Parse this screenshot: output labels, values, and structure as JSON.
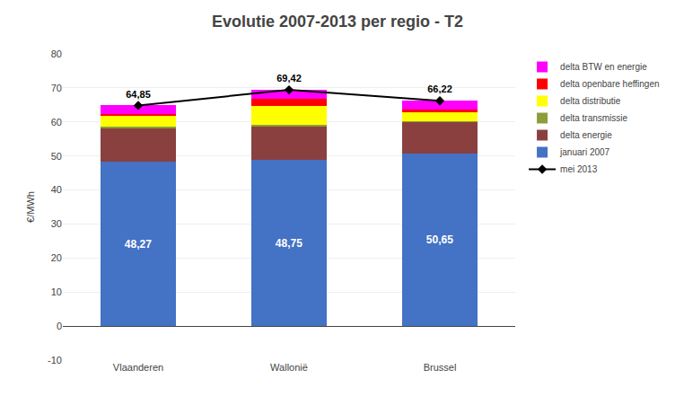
{
  "chart_data": {
    "type": "bar",
    "stacked": true,
    "title": "Evolutie 2007-2013 per regio - T2",
    "ylabel": "€/MWh",
    "categories": [
      "Vlaanderen",
      "Wallonië",
      "Brussel"
    ],
    "ylim": [
      -10,
      80
    ],
    "yticks": [
      -10,
      0,
      10,
      20,
      30,
      40,
      50,
      60,
      70,
      80
    ],
    "grid": true,
    "legend": "right",
    "series": [
      {
        "name": "januari 2007",
        "type": "bar",
        "color": "#4472C4",
        "values": [
          48.27,
          48.75,
          50.65
        ],
        "value_labels": [
          "48,27",
          "48,75",
          "50,65"
        ],
        "data_labels": true
      },
      {
        "name": "delta energie",
        "type": "bar",
        "color": "#8B4040",
        "values": [
          10.08,
          10.13,
          9.35
        ]
      },
      {
        "name": "delta transmissie",
        "type": "bar",
        "color": "#8B9E3A",
        "values": [
          0.3,
          0.3,
          0.3
        ]
      },
      {
        "name": "delta distributie",
        "type": "bar",
        "color": "#FFFF00",
        "values": [
          3.2,
          5.6,
          2.52
        ]
      },
      {
        "name": "delta openbare heffingen",
        "type": "bar",
        "color": "#FF0000",
        "values": [
          0.5,
          1.94,
          0.7
        ]
      },
      {
        "name": "delta BTW en energie",
        "type": "bar",
        "color": "#FF00FF",
        "values": [
          2.5,
          2.7,
          2.7
        ]
      },
      {
        "name": "mei 2013",
        "type": "line",
        "color": "#000000",
        "marker": "diamond",
        "values": [
          64.85,
          69.42,
          66.22
        ],
        "value_labels": [
          "64,85",
          "69,42",
          "66,22"
        ],
        "data_labels": true
      }
    ]
  }
}
